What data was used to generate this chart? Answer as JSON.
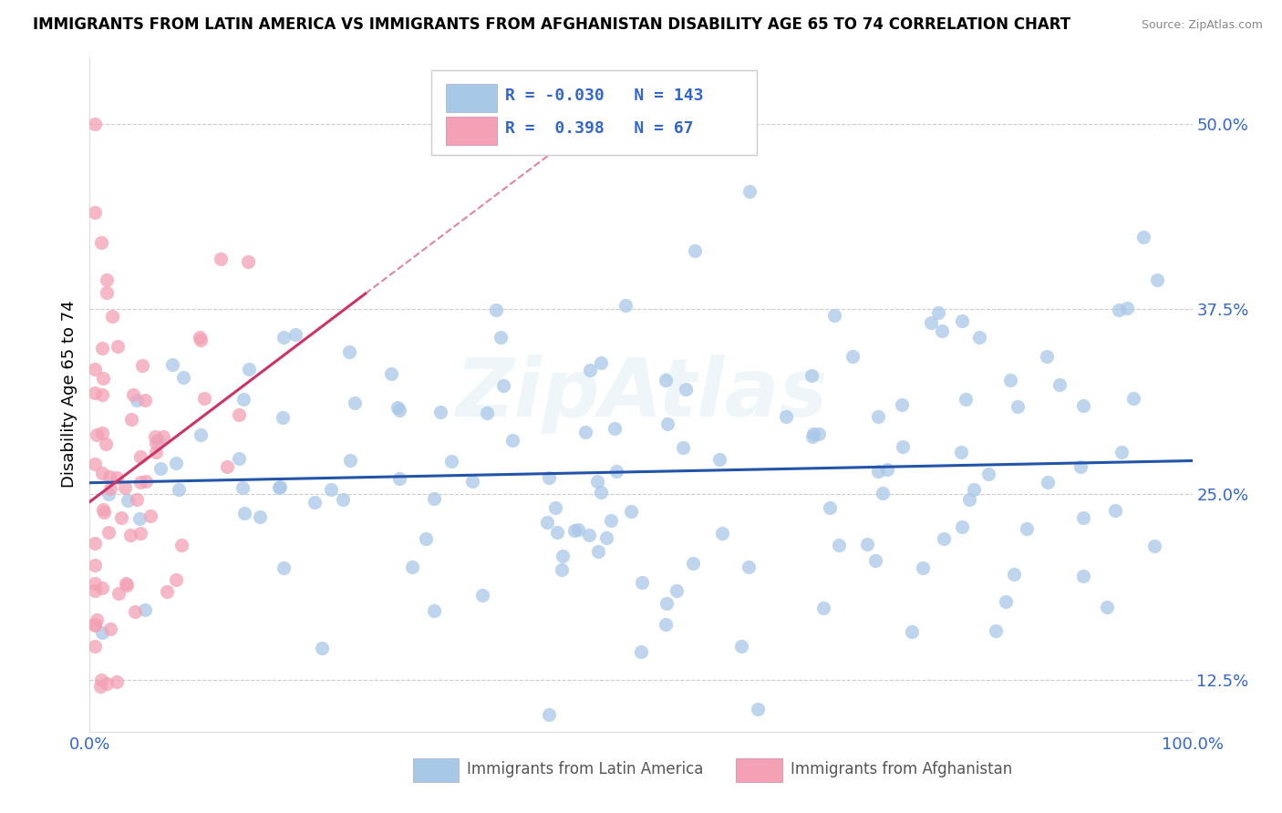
{
  "title": "IMMIGRANTS FROM LATIN AMERICA VS IMMIGRANTS FROM AFGHANISTAN DISABILITY AGE 65 TO 74 CORRELATION CHART",
  "source": "Source: ZipAtlas.com",
  "ylabel": "Disability Age 65 to 74",
  "legend_label_1": "Immigrants from Latin America",
  "legend_label_2": "Immigrants from Afghanistan",
  "R1": -0.03,
  "N1": 143,
  "R2": 0.398,
  "N2": 67,
  "color1": "#a8c8e8",
  "color2": "#f4a0b5",
  "line_color1": "#2255aa",
  "line_color2": "#cc3366",
  "watermark": "ZipAtlas",
  "xlim": [
    0.0,
    1.0
  ],
  "ylim": [
    0.09,
    0.545
  ],
  "yticks": [
    0.125,
    0.25,
    0.375,
    0.5
  ],
  "ytick_labels": [
    "12.5%",
    "25.0%",
    "37.5%",
    "50.0%"
  ],
  "xtick_labels": [
    "0.0%",
    "100.0%"
  ]
}
